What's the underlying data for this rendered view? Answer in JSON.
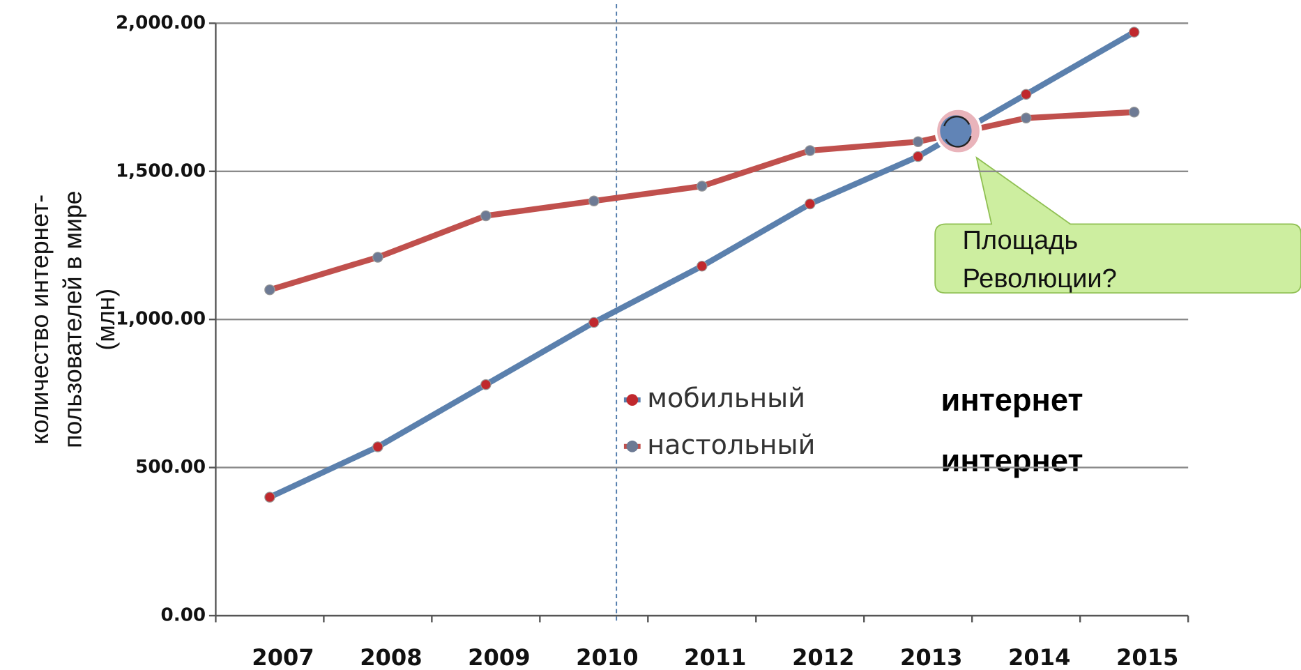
{
  "chart_data": {
    "type": "line",
    "ylabel": [
      "количество интернет-",
      "пользователей в мире",
      "(млн)"
    ],
    "categories": [
      "2007",
      "2008",
      "2009",
      "2010",
      "2011",
      "2012",
      "2013",
      "2014",
      "2015"
    ],
    "series": [
      {
        "name": "мобильный",
        "color": "#5b80ad",
        "marker_color": "#c0282d",
        "values": [
          400,
          570,
          780,
          990,
          1180,
          1390,
          1550,
          1760,
          1970
        ]
      },
      {
        "name": "настольный",
        "color": "#c0504d",
        "marker_color": "#6d7a94",
        "values": [
          1100,
          1210,
          1350,
          1400,
          1450,
          1570,
          1600,
          1680,
          1700
        ]
      }
    ],
    "ylim": [
      0,
      2000
    ],
    "yticks": [
      {
        "value": 0,
        "label": "0.00"
      },
      {
        "value": 500,
        "label": "500.00"
      },
      {
        "value": 1000,
        "label": "1,000.00"
      },
      {
        "value": 1500,
        "label": "1,500.00"
      },
      {
        "value": 2000,
        "label": "2,000.00"
      }
    ],
    "grid": true,
    "callout": "Площадь Революции?",
    "annotations": [
      "интернет",
      "интернет"
    ]
  }
}
